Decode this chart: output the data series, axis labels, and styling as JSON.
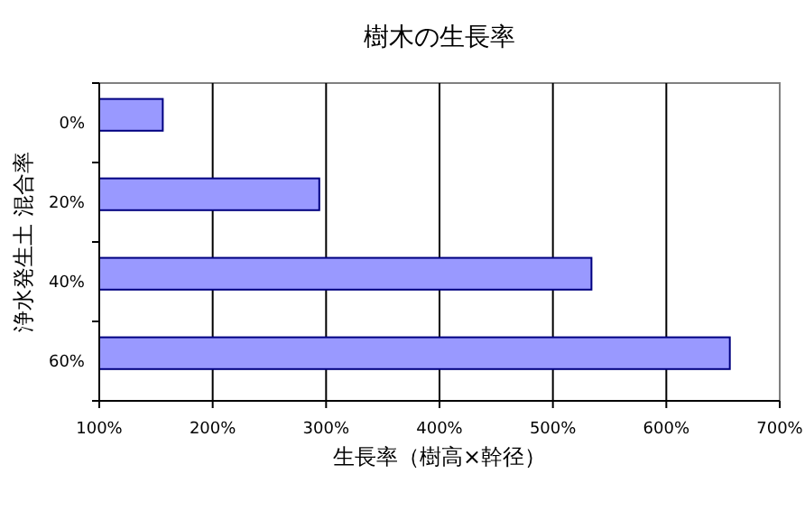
{
  "chart_data": {
    "type": "bar",
    "orientation": "horizontal",
    "title": "樹木の生長率",
    "xlabel": "生長率（樹高×幹径）",
    "ylabel": "浄水発生土 混合率",
    "categories": [
      "0%",
      "20%",
      "40%",
      "60%"
    ],
    "values": [
      156,
      294,
      534,
      656
    ],
    "color": "#9999ff",
    "xlim": [
      100,
      700
    ],
    "xticks": [
      {
        "value": 100,
        "label": "100%"
      },
      {
        "value": 200,
        "label": "200%"
      },
      {
        "value": 300,
        "label": "300%"
      },
      {
        "value": 400,
        "label": "400%"
      },
      {
        "value": 500,
        "label": "500%"
      },
      {
        "value": 600,
        "label": "600%"
      },
      {
        "value": 700,
        "label": "700%"
      }
    ],
    "grid": "x"
  }
}
